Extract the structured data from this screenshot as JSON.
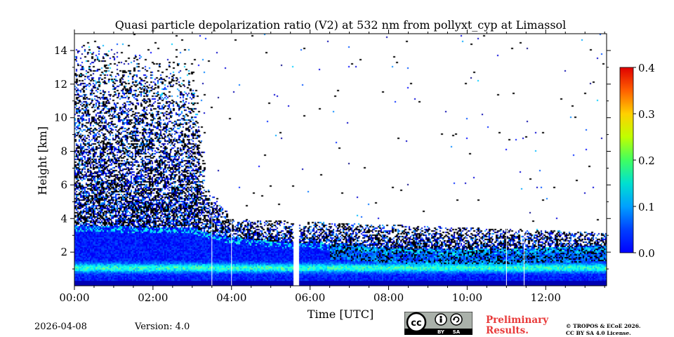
{
  "chart_data": {
    "type": "heatmap",
    "title": "Quasi particle depolarization ratio (V2) at 532 nm from pollyxt_cyp at Limassol",
    "xlabel": "Time [UTC]",
    "ylabel": "Height [km]",
    "xlim_hours": [
      0,
      13.55
    ],
    "ylim_km": [
      0,
      15
    ],
    "x_ticks": [
      {
        "value": 0,
        "label": "00:00"
      },
      {
        "value": 2,
        "label": "02:00"
      },
      {
        "value": 4,
        "label": "04:00"
      },
      {
        "value": 6,
        "label": "06:00"
      },
      {
        "value": 8,
        "label": "08:00"
      },
      {
        "value": 10,
        "label": "10:00"
      },
      {
        "value": 12,
        "label": "12:00"
      }
    ],
    "y_ticks": [
      {
        "value": 2,
        "label": "2"
      },
      {
        "value": 4,
        "label": "4"
      },
      {
        "value": 6,
        "label": "6"
      },
      {
        "value": 8,
        "label": "8"
      },
      {
        "value": 10,
        "label": "10"
      },
      {
        "value": 12,
        "label": "12"
      },
      {
        "value": 14,
        "label": "14"
      }
    ],
    "colorbar": {
      "min": 0.0,
      "max": 0.4,
      "colormap": "jet",
      "ticks": [
        {
          "value": 0.0,
          "label": "0.0"
        },
        {
          "value": 0.1,
          "label": "0.1"
        },
        {
          "value": 0.2,
          "label": "0.2"
        },
        {
          "value": 0.3,
          "label": "0.3"
        },
        {
          "value": 0.4,
          "label": "0.4"
        }
      ]
    },
    "missing_data_gaps_hours": [
      [
        5.55,
        5.72
      ]
    ],
    "profile_marker_times_hours": [
      3.5,
      4.0,
      11.0,
      11.45
    ],
    "boundary_layer_top_km": [
      {
        "t": 0,
        "h": 3.6
      },
      {
        "t": 3.0,
        "h": 3.5
      },
      {
        "t": 3.5,
        "h": 3.1
      },
      {
        "t": 4.0,
        "h": 2.9
      },
      {
        "t": 5.5,
        "h": 2.6
      },
      {
        "t": 6.0,
        "h": 2.6
      },
      {
        "t": 8.0,
        "h": 2.3
      },
      {
        "t": 10.0,
        "h": 2.2
      },
      {
        "t": 12.0,
        "h": 2.3
      },
      {
        "t": 13.55,
        "h": 2.4
      }
    ],
    "dense_signal_top_km": [
      {
        "t": 0,
        "h": 12.5
      },
      {
        "t": 1.5,
        "h": 11.5
      },
      {
        "t": 3.0,
        "h": 10.5
      },
      {
        "t": 3.3,
        "h": 6.0
      },
      {
        "t": 4.0,
        "h": 4.0
      },
      {
        "t": 13.55,
        "h": 3.2
      }
    ]
  },
  "footer": {
    "date": "2026-04-08",
    "version": "Version: 4.0",
    "preliminary_line1": "Preliminary",
    "preliminary_line2": "Results.",
    "copyright_line1": "© TROPOS & ECoE 2026.",
    "copyright_line2": "CC BY SA 4.0 License.",
    "license_badge": {
      "text1": "BY",
      "text2": "SA"
    }
  },
  "colors": {
    "accent_red": "#e83a3a",
    "badge_bg": "#aab1aa"
  }
}
